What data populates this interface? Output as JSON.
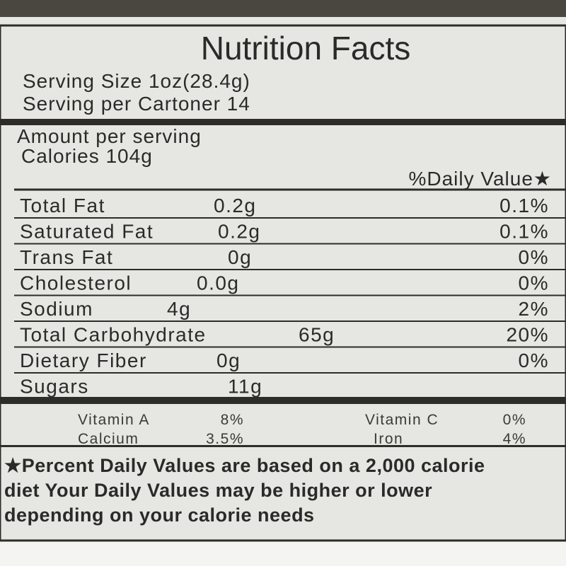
{
  "label": {
    "title": "Nutrition Facts",
    "serving_size": "Serving Size 1oz(28.4g)",
    "servings": "Serving per Cartoner 14",
    "amount_header": "Amount per serving",
    "calories": "Calories 104g",
    "dv_header": "%Daily Value★",
    "rows": [
      [
        "Total Fat",
        "0.2g",
        "0.1%"
      ],
      [
        "Saturated Fat",
        "0.2g",
        "0.1%"
      ],
      [
        "Trans Fat",
        "0g",
        "0%"
      ],
      [
        "Cholesterol",
        "0.0g",
        "0%"
      ],
      [
        "Sodium",
        "4g",
        "2%"
      ],
      [
        "Total Carbohydrate",
        "65g",
        "20%"
      ],
      [
        "Dietary Fiber",
        "0g",
        "0%"
      ],
      [
        "Sugars",
        "11g",
        null
      ]
    ],
    "vitamins": [
      [
        "Vitamin A",
        "8%",
        "Vitamin C",
        "0%"
      ],
      [
        "Calcium",
        "3.5%",
        "Iron",
        "4%"
      ]
    ],
    "footnote": [
      "★Percent Daily Values are based on a 2,000 calorie",
      "diet Your Daily Values may be higher or lower",
      "depending on your calorie needs"
    ]
  }
}
